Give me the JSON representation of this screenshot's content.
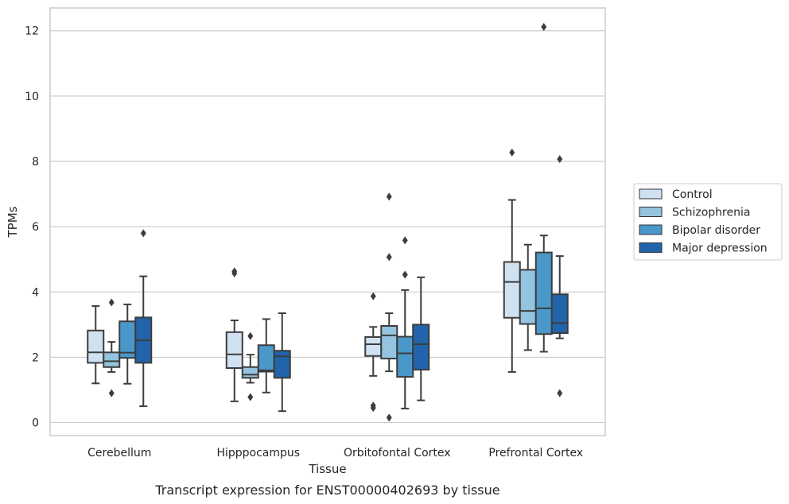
{
  "chart_data": {
    "type": "box",
    "title": "",
    "caption": "Transcript expression for ENST00000402693 by tissue",
    "xlabel": "Tissue",
    "ylabel": "TPMs",
    "ylim": [
      -0.4,
      12.7
    ],
    "yticks": [
      0,
      2,
      4,
      6,
      8,
      10,
      12
    ],
    "grid": "horizontal",
    "legend_position": "right",
    "categories": [
      "Cerebellum",
      "Hipppocampus",
      "Orbitofontal Cortex",
      "Prefrontal Cortex"
    ],
    "series": [
      {
        "name": "Control",
        "color": "#d0e1f2",
        "boxes": [
          {
            "whislo": 1.2,
            "q1": 1.83,
            "med": 2.15,
            "q3": 2.82,
            "whishi": 3.57,
            "fliers": []
          },
          {
            "whislo": 0.65,
            "q1": 1.67,
            "med": 2.09,
            "q3": 2.77,
            "whishi": 3.13,
            "fliers": [
              4.57,
              4.63
            ]
          },
          {
            "whislo": 1.43,
            "q1": 2.04,
            "med": 2.4,
            "q3": 2.62,
            "whishi": 2.93,
            "fliers": [
              0.45,
              0.52,
              3.87
            ]
          },
          {
            "whislo": 1.55,
            "q1": 3.21,
            "med": 4.31,
            "q3": 4.92,
            "whishi": 6.82,
            "fliers": [
              8.27
            ]
          }
        ]
      },
      {
        "name": "Schizophrenia",
        "color": "#94c4df",
        "boxes": [
          {
            "whislo": 1.55,
            "q1": 1.7,
            "med": 1.88,
            "q3": 2.15,
            "whishi": 2.47,
            "fliers": [
              0.9,
              3.68
            ]
          },
          {
            "whislo": 1.22,
            "q1": 1.37,
            "med": 1.47,
            "q3": 1.7,
            "whishi": 2.08,
            "fliers": [
              0.78,
              2.65
            ]
          },
          {
            "whislo": 1.57,
            "q1": 1.96,
            "med": 2.67,
            "q3": 2.96,
            "whishi": 3.35,
            "fliers": [
              0.15,
              5.07,
              6.92
            ]
          },
          {
            "whislo": 2.22,
            "q1": 3.02,
            "med": 3.42,
            "q3": 4.68,
            "whishi": 5.45,
            "fliers": []
          }
        ]
      },
      {
        "name": "Bipolar disorder",
        "color": "#4a98c9",
        "boxes": [
          {
            "whislo": 1.19,
            "q1": 1.98,
            "med": 2.14,
            "q3": 3.1,
            "whishi": 3.62,
            "fliers": []
          },
          {
            "whislo": 0.92,
            "q1": 1.56,
            "med": 1.6,
            "q3": 2.37,
            "whishi": 3.17,
            "fliers": []
          },
          {
            "whislo": 0.43,
            "q1": 1.4,
            "med": 2.12,
            "q3": 2.63,
            "whishi": 4.06,
            "fliers": [
              4.53,
              5.58
            ]
          },
          {
            "whislo": 2.17,
            "q1": 2.71,
            "med": 3.5,
            "q3": 5.21,
            "whishi": 5.73,
            "fliers": [
              12.12
            ]
          }
        ]
      },
      {
        "name": "Major depression",
        "color": "#2164ab",
        "boxes": [
          {
            "whislo": 0.5,
            "q1": 1.83,
            "med": 2.52,
            "q3": 3.22,
            "whishi": 4.48,
            "fliers": [
              5.8
            ]
          },
          {
            "whislo": 0.35,
            "q1": 1.37,
            "med": 2.03,
            "q3": 2.2,
            "whishi": 3.35,
            "fliers": []
          },
          {
            "whislo": 0.68,
            "q1": 1.62,
            "med": 2.4,
            "q3": 3.0,
            "whishi": 4.45,
            "fliers": []
          },
          {
            "whislo": 2.58,
            "q1": 2.74,
            "med": 3.05,
            "q3": 3.93,
            "whishi": 5.1,
            "fliers": [
              0.9,
              8.07
            ]
          }
        ]
      }
    ]
  }
}
